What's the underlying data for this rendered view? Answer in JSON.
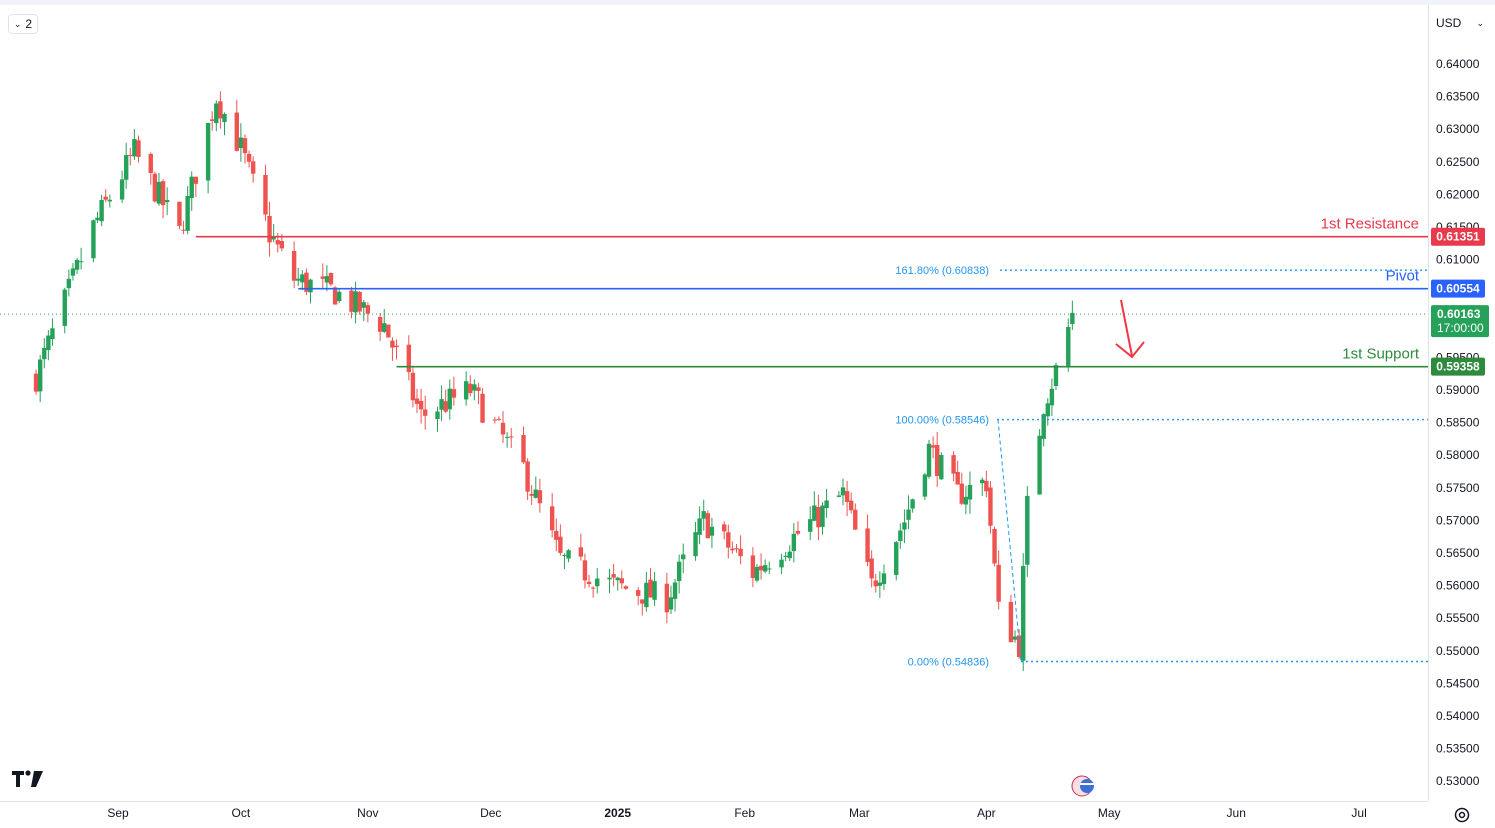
{
  "toolbar": {
    "collapse_count": "2",
    "currency": "USD"
  },
  "icons": {
    "collapse": "chevron-down-icon",
    "currency": "chevron-down-icon",
    "logo": "tradingview-logo-icon",
    "settings": "gear-icon",
    "event": "us-flag-event-icon"
  },
  "colors": {
    "up": "#26a15a",
    "down": "#ef5350",
    "resistance": "#e8394d",
    "pivot": "#2962ff",
    "support": "#2e8b3e",
    "fib": "#2196f3",
    "arrow": "#f23645"
  },
  "chart_data": {
    "type": "candlestick",
    "ylim": [
      0.5265,
      0.6428
    ],
    "y_ticks": [
      "0.64000",
      "0.63500",
      "0.63000",
      "0.62500",
      "0.62000",
      "0.61500",
      "0.61000",
      "0.60500",
      "0.60000",
      "0.59500",
      "0.59000",
      "0.58500",
      "0.58000",
      "0.57500",
      "0.57000",
      "0.56500",
      "0.56000",
      "0.55500",
      "0.55000",
      "0.54500",
      "0.54000",
      "0.53500",
      "0.53000"
    ],
    "x_ticks": [
      {
        "label": "Sep",
        "date": "2024-09-01"
      },
      {
        "label": "Oct",
        "date": "2024-10-01"
      },
      {
        "label": "Nov",
        "date": "2024-11-01"
      },
      {
        "label": "Dec",
        "date": "2024-12-01"
      },
      {
        "label": "2025",
        "date": "2025-01-01",
        "bold": true
      },
      {
        "label": "Feb",
        "date": "2025-02-01"
      },
      {
        "label": "Mar",
        "date": "2025-03-01"
      },
      {
        "label": "Apr",
        "date": "2025-04-01"
      },
      {
        "label": "May",
        "date": "2025-05-01"
      },
      {
        "label": "Jun",
        "date": "2025-06-01"
      },
      {
        "label": "Jul",
        "date": "2025-07-01"
      }
    ],
    "series": [
      {
        "close": [
          {
            "date": "2024-08-12",
            "value": 0.592
          },
          {
            "date": "2024-08-26",
            "value": 0.615
          },
          {
            "date": "2024-09-05",
            "value": 0.6265
          },
          {
            "date": "2024-09-16",
            "value": 0.614
          },
          {
            "date": "2024-09-25",
            "value": 0.635
          },
          {
            "date": "2024-10-01",
            "value": 0.627
          },
          {
            "date": "2024-10-08",
            "value": 0.614
          },
          {
            "date": "2024-10-14",
            "value": 0.607
          },
          {
            "date": "2024-10-24",
            "value": 0.605
          },
          {
            "date": "2024-11-05",
            "value": 0.6
          },
          {
            "date": "2024-11-14",
            "value": 0.586
          },
          {
            "date": "2024-11-26",
            "value": 0.59
          },
          {
            "date": "2024-12-09",
            "value": 0.578
          },
          {
            "date": "2024-12-18",
            "value": 0.564
          },
          {
            "date": "2024-12-31",
            "value": 0.56
          },
          {
            "date": "2025-01-13",
            "value": 0.558
          },
          {
            "date": "2025-01-22",
            "value": 0.57
          },
          {
            "date": "2025-02-03",
            "value": 0.562
          },
          {
            "date": "2025-02-14",
            "value": 0.568
          },
          {
            "date": "2025-02-25",
            "value": 0.574
          },
          {
            "date": "2025-03-04",
            "value": 0.56
          },
          {
            "date": "2025-03-12",
            "value": 0.57
          },
          {
            "date": "2025-03-18",
            "value": 0.581
          },
          {
            "date": "2025-03-25",
            "value": 0.574
          },
          {
            "date": "2025-04-01",
            "value": 0.576
          },
          {
            "date": "2025-04-04",
            "value": 0.556
          },
          {
            "date": "2025-04-09",
            "value": 0.551
          },
          {
            "date": "2025-04-11",
            "value": 0.572
          },
          {
            "date": "2025-04-15",
            "value": 0.588
          },
          {
            "date": "2025-04-18",
            "value": 0.593
          },
          {
            "date": "2025-04-22",
            "value": 0.6016
          }
        ]
      }
    ],
    "levels": [
      {
        "name": "1st Resistance",
        "value": 0.61351,
        "label": "0.61351",
        "from": "2024-09-20"
      },
      {
        "name": "Pivot",
        "value": 0.60554,
        "label": "0.60554",
        "from": "2024-10-15"
      },
      {
        "name": "1st Support",
        "value": 0.59358,
        "label": "0.59358",
        "from": "2024-11-08"
      }
    ],
    "fibonacci": [
      {
        "label": "161.80% (0.60838)",
        "value": 0.60838
      },
      {
        "label": "100.00% (0.58546)",
        "value": 0.58546
      },
      {
        "label": "0.00% (0.54836)",
        "value": 0.54836
      }
    ],
    "last_price": {
      "value": 0.60163,
      "label": "0.60163",
      "countdown": "17:00:00"
    }
  }
}
